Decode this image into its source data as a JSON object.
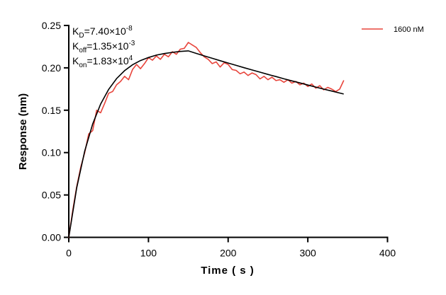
{
  "chart_data": {
    "type": "line",
    "title": "",
    "xlabel": "Time ( s )",
    "ylabel": "Response (nm)",
    "xlim": [
      0,
      400
    ],
    "ylim": [
      0,
      0.25
    ],
    "xticks": [
      "0",
      "100",
      "200",
      "300",
      "400"
    ],
    "yticks": [
      "0.00",
      "0.05",
      "0.10",
      "0.15",
      "0.20",
      "0.25"
    ],
    "grid": false,
    "legend_position": "top-right",
    "annotations": [
      {
        "base": "K",
        "sub": "D",
        "text": "=7.40×10",
        "sup": "-8"
      },
      {
        "base": "K",
        "sub": "off",
        "text": "=1.35×10",
        "sup": "-3"
      },
      {
        "base": "K",
        "sub": "on",
        "text": "=1.83×10",
        "sup": "4"
      }
    ],
    "series": [
      {
        "name": "1600 nM",
        "color": "#e8453c",
        "x": [
          0,
          5,
          10,
          15,
          20,
          25,
          30,
          35,
          40,
          45,
          50,
          55,
          60,
          65,
          70,
          75,
          80,
          85,
          90,
          95,
          100,
          105,
          110,
          115,
          120,
          125,
          130,
          135,
          140,
          145,
          150,
          155,
          160,
          165,
          170,
          175,
          180,
          185,
          190,
          195,
          200,
          205,
          210,
          215,
          220,
          225,
          230,
          235,
          240,
          245,
          250,
          255,
          260,
          265,
          270,
          275,
          280,
          285,
          290,
          295,
          300,
          305,
          310,
          315,
          320,
          325,
          330,
          335,
          340,
          345
        ],
        "y": [
          0,
          0.032,
          0.06,
          0.083,
          0.1,
          0.122,
          0.126,
          0.15,
          0.147,
          0.158,
          0.17,
          0.172,
          0.18,
          0.184,
          0.19,
          0.186,
          0.198,
          0.204,
          0.199,
          0.205,
          0.212,
          0.209,
          0.214,
          0.21,
          0.216,
          0.213,
          0.219,
          0.216,
          0.222,
          0.223,
          0.23,
          0.227,
          0.224,
          0.218,
          0.213,
          0.21,
          0.205,
          0.207,
          0.201,
          0.206,
          0.204,
          0.198,
          0.197,
          0.193,
          0.195,
          0.191,
          0.194,
          0.192,
          0.187,
          0.19,
          0.186,
          0.189,
          0.185,
          0.186,
          0.183,
          0.186,
          0.182,
          0.184,
          0.18,
          0.182,
          0.178,
          0.181,
          0.176,
          0.179,
          0.174,
          0.177,
          0.175,
          0.172,
          0.175,
          0.185
        ]
      }
    ],
    "fit": {
      "color": "#000000",
      "x": [
        0,
        10,
        20,
        30,
        40,
        50,
        60,
        70,
        80,
        90,
        100,
        110,
        120,
        130,
        140,
        150,
        160,
        170,
        180,
        190,
        200,
        210,
        220,
        230,
        240,
        250,
        260,
        270,
        280,
        290,
        300,
        310,
        320,
        330,
        340,
        345
      ],
      "y": [
        0,
        0.0585,
        0.1018,
        0.1337,
        0.1573,
        0.1745,
        0.1873,
        0.1967,
        0.2036,
        0.2086,
        0.2122,
        0.215,
        0.2169,
        0.2183,
        0.2194,
        0.22,
        0.217,
        0.2141,
        0.2113,
        0.2084,
        0.2057,
        0.2029,
        0.2002,
        0.1975,
        0.1949,
        0.1922,
        0.1897,
        0.1871,
        0.1846,
        0.1822,
        0.1797,
        0.1773,
        0.1749,
        0.1726,
        0.1703,
        0.1691
      ]
    }
  }
}
